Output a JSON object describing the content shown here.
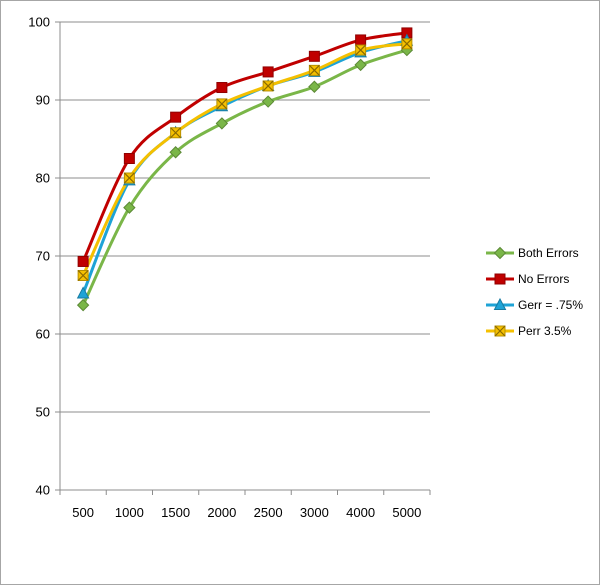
{
  "chart_data": {
    "type": "line",
    "title": "",
    "xlabel": "",
    "ylabel": "",
    "categories": [
      "500",
      "1000",
      "1500",
      "2000",
      "2500",
      "3000",
      "4000",
      "5000"
    ],
    "ylim": [
      40,
      100
    ],
    "yticks": [
      40,
      50,
      60,
      70,
      80,
      90,
      100
    ],
    "grid": "horizontal",
    "legend_position": "right",
    "series": [
      {
        "name": "Both Errors",
        "color": "#7ab648",
        "marker": "diamond",
        "values": [
          63.7,
          76.2,
          83.3,
          87.0,
          89.8,
          91.7,
          94.5,
          96.4
        ]
      },
      {
        "name": "No Errors",
        "color": "#c00000",
        "marker": "square",
        "values": [
          69.3,
          82.5,
          87.8,
          91.6,
          93.6,
          95.6,
          97.7,
          98.6
        ]
      },
      {
        "name": "Gerr = .75%",
        "color": "#1ea3d6",
        "marker": "triangle",
        "values": [
          65.2,
          79.7,
          85.8,
          89.2,
          91.8,
          93.6,
          96.1,
          97.6
        ]
      },
      {
        "name": "Perr 3.5%",
        "color": "#f5c000",
        "marker": "x",
        "values": [
          67.5,
          80.0,
          85.8,
          89.5,
          91.8,
          93.8,
          96.4,
          97.2
        ]
      }
    ]
  }
}
